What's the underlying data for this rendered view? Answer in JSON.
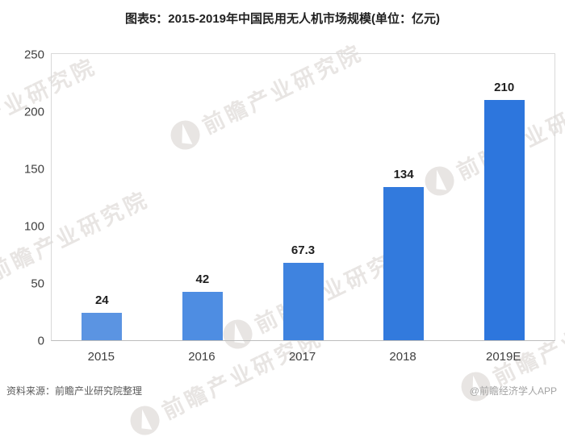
{
  "title": "图表5：2015-2019年中国民用无人机市场规模(单位：亿元)",
  "chart_data": {
    "type": "bar",
    "title": "图表5：2015-2019年中国民用无人机市场规模(单位：亿元)",
    "categories": [
      "2015",
      "2016",
      "2017",
      "2018",
      "2019E"
    ],
    "values": [
      24,
      42,
      67.3,
      134,
      210
    ],
    "value_labels": [
      "24",
      "42",
      "67.3",
      "134",
      "210"
    ],
    "xlabel": "",
    "ylabel": "",
    "unit": "亿元",
    "ylim": [
      0,
      250
    ],
    "yticks": [
      0,
      50,
      100,
      150,
      200,
      250
    ],
    "grid": false,
    "legend": "none",
    "bar_colors": [
      "#5b94e2",
      "#4e8de2",
      "#3f83df",
      "#327add",
      "#2d76dd"
    ]
  },
  "watermark": {
    "text": "前瞻产业研究院",
    "logo": "qianzhan-circle-logo",
    "color": "#e8e5e3"
  },
  "footer": {
    "source": "资料来源：前瞻产业研究院整理",
    "credit": "@前瞻经济学人APP"
  }
}
